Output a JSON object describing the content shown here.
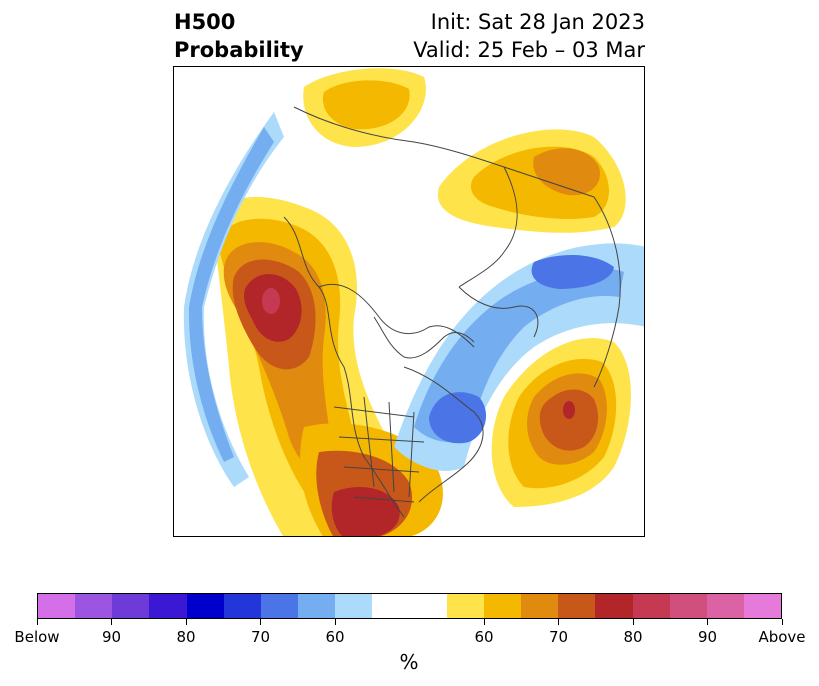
{
  "title": {
    "left_line1": "H500",
    "left_line2": "Probability",
    "right_line1": "Init: Sat 28 Jan 2023",
    "right_line2": "Valid: 25 Feb – 03 Mar"
  },
  "colorbar": {
    "colors": [
      "#d56fe8",
      "#9b55e0",
      "#6e3ad8",
      "#3a18d4",
      "#0000cc",
      "#2336d9",
      "#4b74e6",
      "#74aef0",
      "#acdafa",
      "#ffffff",
      "#ffffff",
      "#fee34a",
      "#f5b800",
      "#e08a0f",
      "#c8581a",
      "#b2262a",
      "#c53a52",
      "#d14f7d",
      "#dc62a6",
      "#e57adb"
    ],
    "tick_labels": [
      "Below",
      "90",
      "80",
      "70",
      "60",
      "60",
      "70",
      "80",
      "90",
      "Above"
    ],
    "unit": "%"
  },
  "map": {
    "projection": "polar stereographic, North Pole centered",
    "palette": {
      "yellow": "#fee34a",
      "gold": "#f5b800",
      "orange": "#e08a0f",
      "dark_orange": "#c8581a",
      "red": "#b2262a",
      "pink_red": "#c53a52",
      "pale_blue": "#acdafa",
      "light_blue": "#74aef0",
      "mid_blue": "#4b74e6",
      "outline": "#444444"
    }
  }
}
